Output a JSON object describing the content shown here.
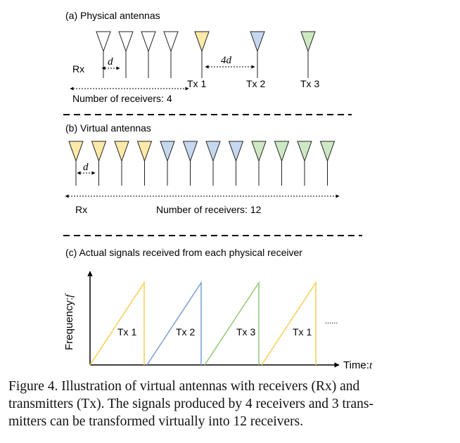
{
  "panel_a": {
    "title": "(a) Physical antennas",
    "rx_label": "Rx",
    "d_label": "d",
    "four_d_label": "4d",
    "tx_labels": [
      "Tx 1",
      "Tx 2",
      "Tx 3"
    ],
    "receivers_label": "Number of receivers: 4"
  },
  "panel_b": {
    "title": "(b) Virtual antennas",
    "d_label": "d",
    "rx_label": "Rx",
    "receivers_label": "Number of receivers: 12"
  },
  "panel_c": {
    "title": "(c) Actual signals received from each physical receiver",
    "y_label": "Frequency:",
    "y_var": "f",
    "x_label": "Time:",
    "x_var": "t",
    "tx_labels": [
      "Tx 1",
      "Tx 2",
      "Tx 3",
      "Tx 1"
    ],
    "ellipsis": "......"
  },
  "colors": {
    "rx": "#ffffff",
    "tx1": "#fde9a8",
    "tx2": "#c6d8ef",
    "tx3": "#cde8c3",
    "line_tx1": "#f4d35e",
    "line_tx2": "#7fa7d8",
    "line_tx3": "#98cc7e"
  },
  "caption": {
    "line1": "Figure 4.  Illustration of virtual antennas with receivers (Rx) and",
    "line2": "transmitters (Tx). The signals produced by 4 receivers and 3 trans-",
    "line3": "mitters can be transformed virtually into 12 receivers."
  }
}
